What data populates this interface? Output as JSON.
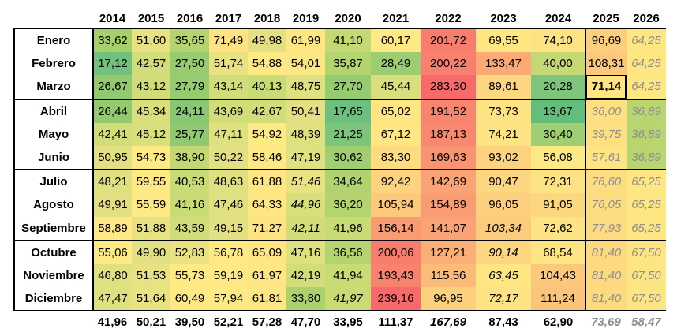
{
  "years": [
    "2014",
    "2015",
    "2016",
    "2017",
    "2018",
    "2019",
    "2020",
    "2021",
    "2022",
    "2023",
    "2024",
    "2025",
    "2026"
  ],
  "rows": [
    {
      "month": "Enero",
      "values": [
        "33,62",
        "51,60",
        "35,65",
        "71,49",
        "49,98",
        "61,99",
        "41,10",
        "60,17",
        "201,72",
        "69,55",
        "74,10",
        "96,69",
        "64,25"
      ],
      "colors": [
        "#a6d06c",
        "#e8e283",
        "#b4d46f",
        "#fee382",
        "#e3e083",
        "#fee783",
        "#c4d973",
        "#fee984",
        "#f77e6f",
        "#fee683",
        "#fde383",
        "#fcce7d",
        "#fee683"
      ],
      "italic": [],
      "proj": [
        12
      ]
    },
    {
      "month": "Febrero",
      "values": [
        "17,12",
        "42,57",
        "27,50",
        "51,74",
        "54,88",
        "54,01",
        "35,87",
        "28,49",
        "200,22",
        "133,47",
        "40,00",
        "108,31",
        "64,25"
      ],
      "colors": [
        "#72c17e",
        "#d2dd7a",
        "#96cb70",
        "#e8e283",
        "#feea84",
        "#fbe784",
        "#b4d46f",
        "#9ccd72",
        "#f7806f",
        "#fbaa76",
        "#c4d973",
        "#fcc97c",
        "#fee683"
      ],
      "italic": [],
      "proj": [
        12
      ],
      "bold": []
    },
    {
      "month": "Marzo",
      "values": [
        "26,67",
        "43,12",
        "27,79",
        "43,14",
        "40,13",
        "48,75",
        "27,70",
        "45,44",
        "283,30",
        "89,61",
        "20,28",
        "71,14",
        "64,25"
      ],
      "colors": [
        "#93ca70",
        "#d2dd7a",
        "#96cb70",
        "#d2dd7a",
        "#c8db75",
        "#dfe07f",
        "#96cb70",
        "#d8df7c",
        "#f8696b",
        "#fdd680",
        "#7dc47d",
        "#fee582",
        "#fee683"
      ],
      "italic": [],
      "proj": [
        12
      ],
      "bold": [
        11
      ]
    },
    {
      "month": "Abril",
      "values": [
        "26,44",
        "45,34",
        "24,11",
        "43,69",
        "42,67",
        "50,41",
        "17,65",
        "65,02",
        "191,52",
        "73,73",
        "13,67",
        "36,00",
        "36,89"
      ],
      "colors": [
        "#93ca70",
        "#d8df7c",
        "#89c773",
        "#d2dd7a",
        "#d2dd7a",
        "#e3e083",
        "#6cbf7c",
        "#fee683",
        "#f7856f",
        "#fde383",
        "#63be7b",
        "#fedf82",
        "#b8d570"
      ],
      "italic": [],
      "proj": [
        11,
        12
      ]
    },
    {
      "month": "Mayo",
      "values": [
        "42,41",
        "45,12",
        "25,77",
        "47,11",
        "54,92",
        "48,39",
        "21,25",
        "67,12",
        "187,13",
        "74,21",
        "30,40",
        "39,75",
        "36,89"
      ],
      "colors": [
        "#d2dd7a",
        "#d8df7c",
        "#90c972",
        "#dfe07f",
        "#feea84",
        "#dfe07f",
        "#7dc47d",
        "#fee683",
        "#f88870",
        "#fde383",
        "#a0ce72",
        "#fedf82",
        "#b8d570"
      ],
      "italic": [],
      "proj": [
        11,
        12
      ]
    },
    {
      "month": "Junio",
      "values": [
        "50,95",
        "54,73",
        "38,90",
        "50,22",
        "58,46",
        "47,19",
        "30,62",
        "83,30",
        "169,63",
        "93,02",
        "56,08",
        "57,61",
        "36,89"
      ],
      "colors": [
        "#e3e083",
        "#feea84",
        "#c1d874",
        "#e3e083",
        "#fee984",
        "#dfe07f",
        "#a2ce72",
        "#fddb81",
        "#f89472",
        "#fdd37f",
        "#feea84",
        "#fde583",
        "#b8d570"
      ],
      "italic": [],
      "proj": [
        11,
        12
      ]
    },
    {
      "month": "Julio",
      "values": [
        "48,21",
        "59,55",
        "40,53",
        "48,63",
        "61,88",
        "51,46",
        "34,64",
        "92,42",
        "142,69",
        "90,47",
        "72,31",
        "76,60",
        "65,25"
      ],
      "colors": [
        "#dfe07f",
        "#fee984",
        "#c8db75",
        "#dfe07f",
        "#fee783",
        "#e8e283",
        "#b0d36f",
        "#fdd37f",
        "#faa374",
        "#fdd680",
        "#fde383",
        "#fddd81",
        "#fee683"
      ],
      "italic": [
        5
      ],
      "proj": [
        11,
        12
      ]
    },
    {
      "month": "Agosto",
      "values": [
        "49,91",
        "55,59",
        "41,16",
        "47,46",
        "64,33",
        "44,96",
        "36,20",
        "105,94",
        "154,89",
        "96,05",
        "91,05",
        "76,05",
        "65,25"
      ],
      "colors": [
        "#e3e083",
        "#feea84",
        "#c8db75",
        "#dfe07f",
        "#fee783",
        "#d8df7c",
        "#b4d46f",
        "#fcc87c",
        "#f99c73",
        "#fcd07e",
        "#fdd680",
        "#fddd81",
        "#fee683"
      ],
      "italic": [
        5
      ],
      "proj": [
        11,
        12
      ]
    },
    {
      "month": "Septiembre",
      "values": [
        "58,89",
        "51,88",
        "43,59",
        "49,15",
        "71,27",
        "42,11",
        "41,96",
        "156,14",
        "141,07",
        "103,34",
        "72,62",
        "77,93",
        "65,25"
      ],
      "colors": [
        "#fee984",
        "#e8e283",
        "#d2dd7a",
        "#e3e083",
        "#fee382",
        "#d2dd7a",
        "#c8db75",
        "#f99b73",
        "#faa374",
        "#fccc7d",
        "#fde383",
        "#fddb81",
        "#fee683"
      ],
      "italic": [
        5,
        9
      ],
      "proj": [
        11,
        12
      ]
    },
    {
      "month": "Octubre",
      "values": [
        "55,06",
        "49,90",
        "52,83",
        "56,78",
        "65,09",
        "47,16",
        "36,56",
        "200,06",
        "127,21",
        "90,14",
        "68,54",
        "81,40",
        "67,50"
      ],
      "colors": [
        "#feea84",
        "#e3e083",
        "#e8e283",
        "#feea84",
        "#fee783",
        "#dfe07f",
        "#b4d46f",
        "#f77e6f",
        "#fbaf77",
        "#fdd680",
        "#fee583",
        "#fdda80",
        "#fee583"
      ],
      "italic": [
        9
      ],
      "proj": [
        11,
        12
      ]
    },
    {
      "month": "Noviembre",
      "values": [
        "46,80",
        "51,53",
        "55,73",
        "59,19",
        "61,97",
        "42,19",
        "41,94",
        "193,43",
        "115,56",
        "63,45",
        "104,43",
        "81,40",
        "67,50"
      ],
      "colors": [
        "#dfe07f",
        "#e8e283",
        "#feea84",
        "#fee984",
        "#fee783",
        "#d2dd7a",
        "#c8db75",
        "#f7836f",
        "#fbbb79",
        "#fee783",
        "#fcc97c",
        "#fdda80",
        "#fee583"
      ],
      "italic": [
        9
      ],
      "proj": [
        11,
        12
      ]
    },
    {
      "month": "Diciembre",
      "values": [
        "47,47",
        "51,64",
        "60,49",
        "57,94",
        "61,81",
        "33,80",
        "41,97",
        "239,16",
        "96,95",
        "72,17",
        "111,24",
        "81,40",
        "67,50"
      ],
      "colors": [
        "#dfe07f",
        "#e8e283",
        "#fee984",
        "#feea84",
        "#fee783",
        "#acd270",
        "#c8db75",
        "#f8696b",
        "#fcd07e",
        "#fde383",
        "#fcc47b",
        "#fdda80",
        "#fee583"
      ],
      "italic": [
        6,
        9
      ],
      "proj": [
        11,
        12
      ]
    }
  ],
  "totals": [
    "41,96",
    "50,21",
    "39,50",
    "52,21",
    "57,28",
    "47,70",
    "33,95",
    "111,37",
    "167,69",
    "87,43",
    "62,90",
    "73,69",
    "58,47"
  ],
  "totals_italic": [
    8
  ],
  "totals_proj": [
    11,
    12
  ]
}
